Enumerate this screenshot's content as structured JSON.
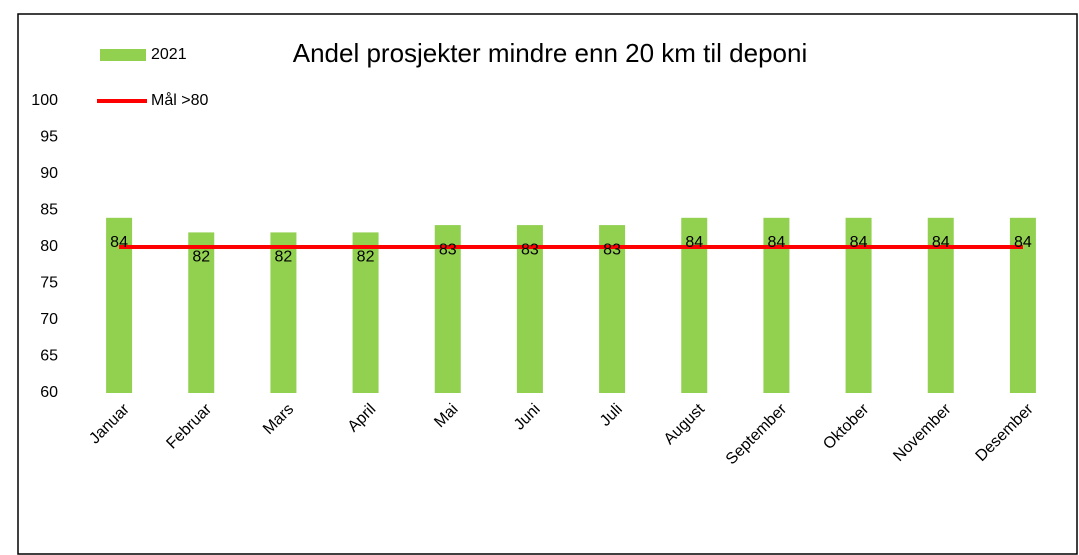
{
  "chart_data": {
    "type": "bar",
    "title": "Andel prosjekter mindre enn 20 km til deponi",
    "categories": [
      "Januar",
      "Februar",
      "Mars",
      "April",
      "Mai",
      "Juni",
      "Juli",
      "August",
      "September",
      "Oktober",
      "November",
      "Desember"
    ],
    "series": [
      {
        "name": "2021",
        "color": "#92d050",
        "type": "bar",
        "values": [
          84,
          82,
          82,
          82,
          83,
          83,
          83,
          84,
          84,
          84,
          84,
          84
        ]
      },
      {
        "name": "Mål >80",
        "color": "#ff0000",
        "type": "line",
        "values": [
          80,
          80,
          80,
          80,
          80,
          80,
          80,
          80,
          80,
          80,
          80,
          80
        ]
      }
    ],
    "ylim": [
      60,
      100
    ],
    "yticks": [
      60,
      65,
      70,
      75,
      80,
      85,
      90,
      95,
      100
    ],
    "grid": false
  }
}
